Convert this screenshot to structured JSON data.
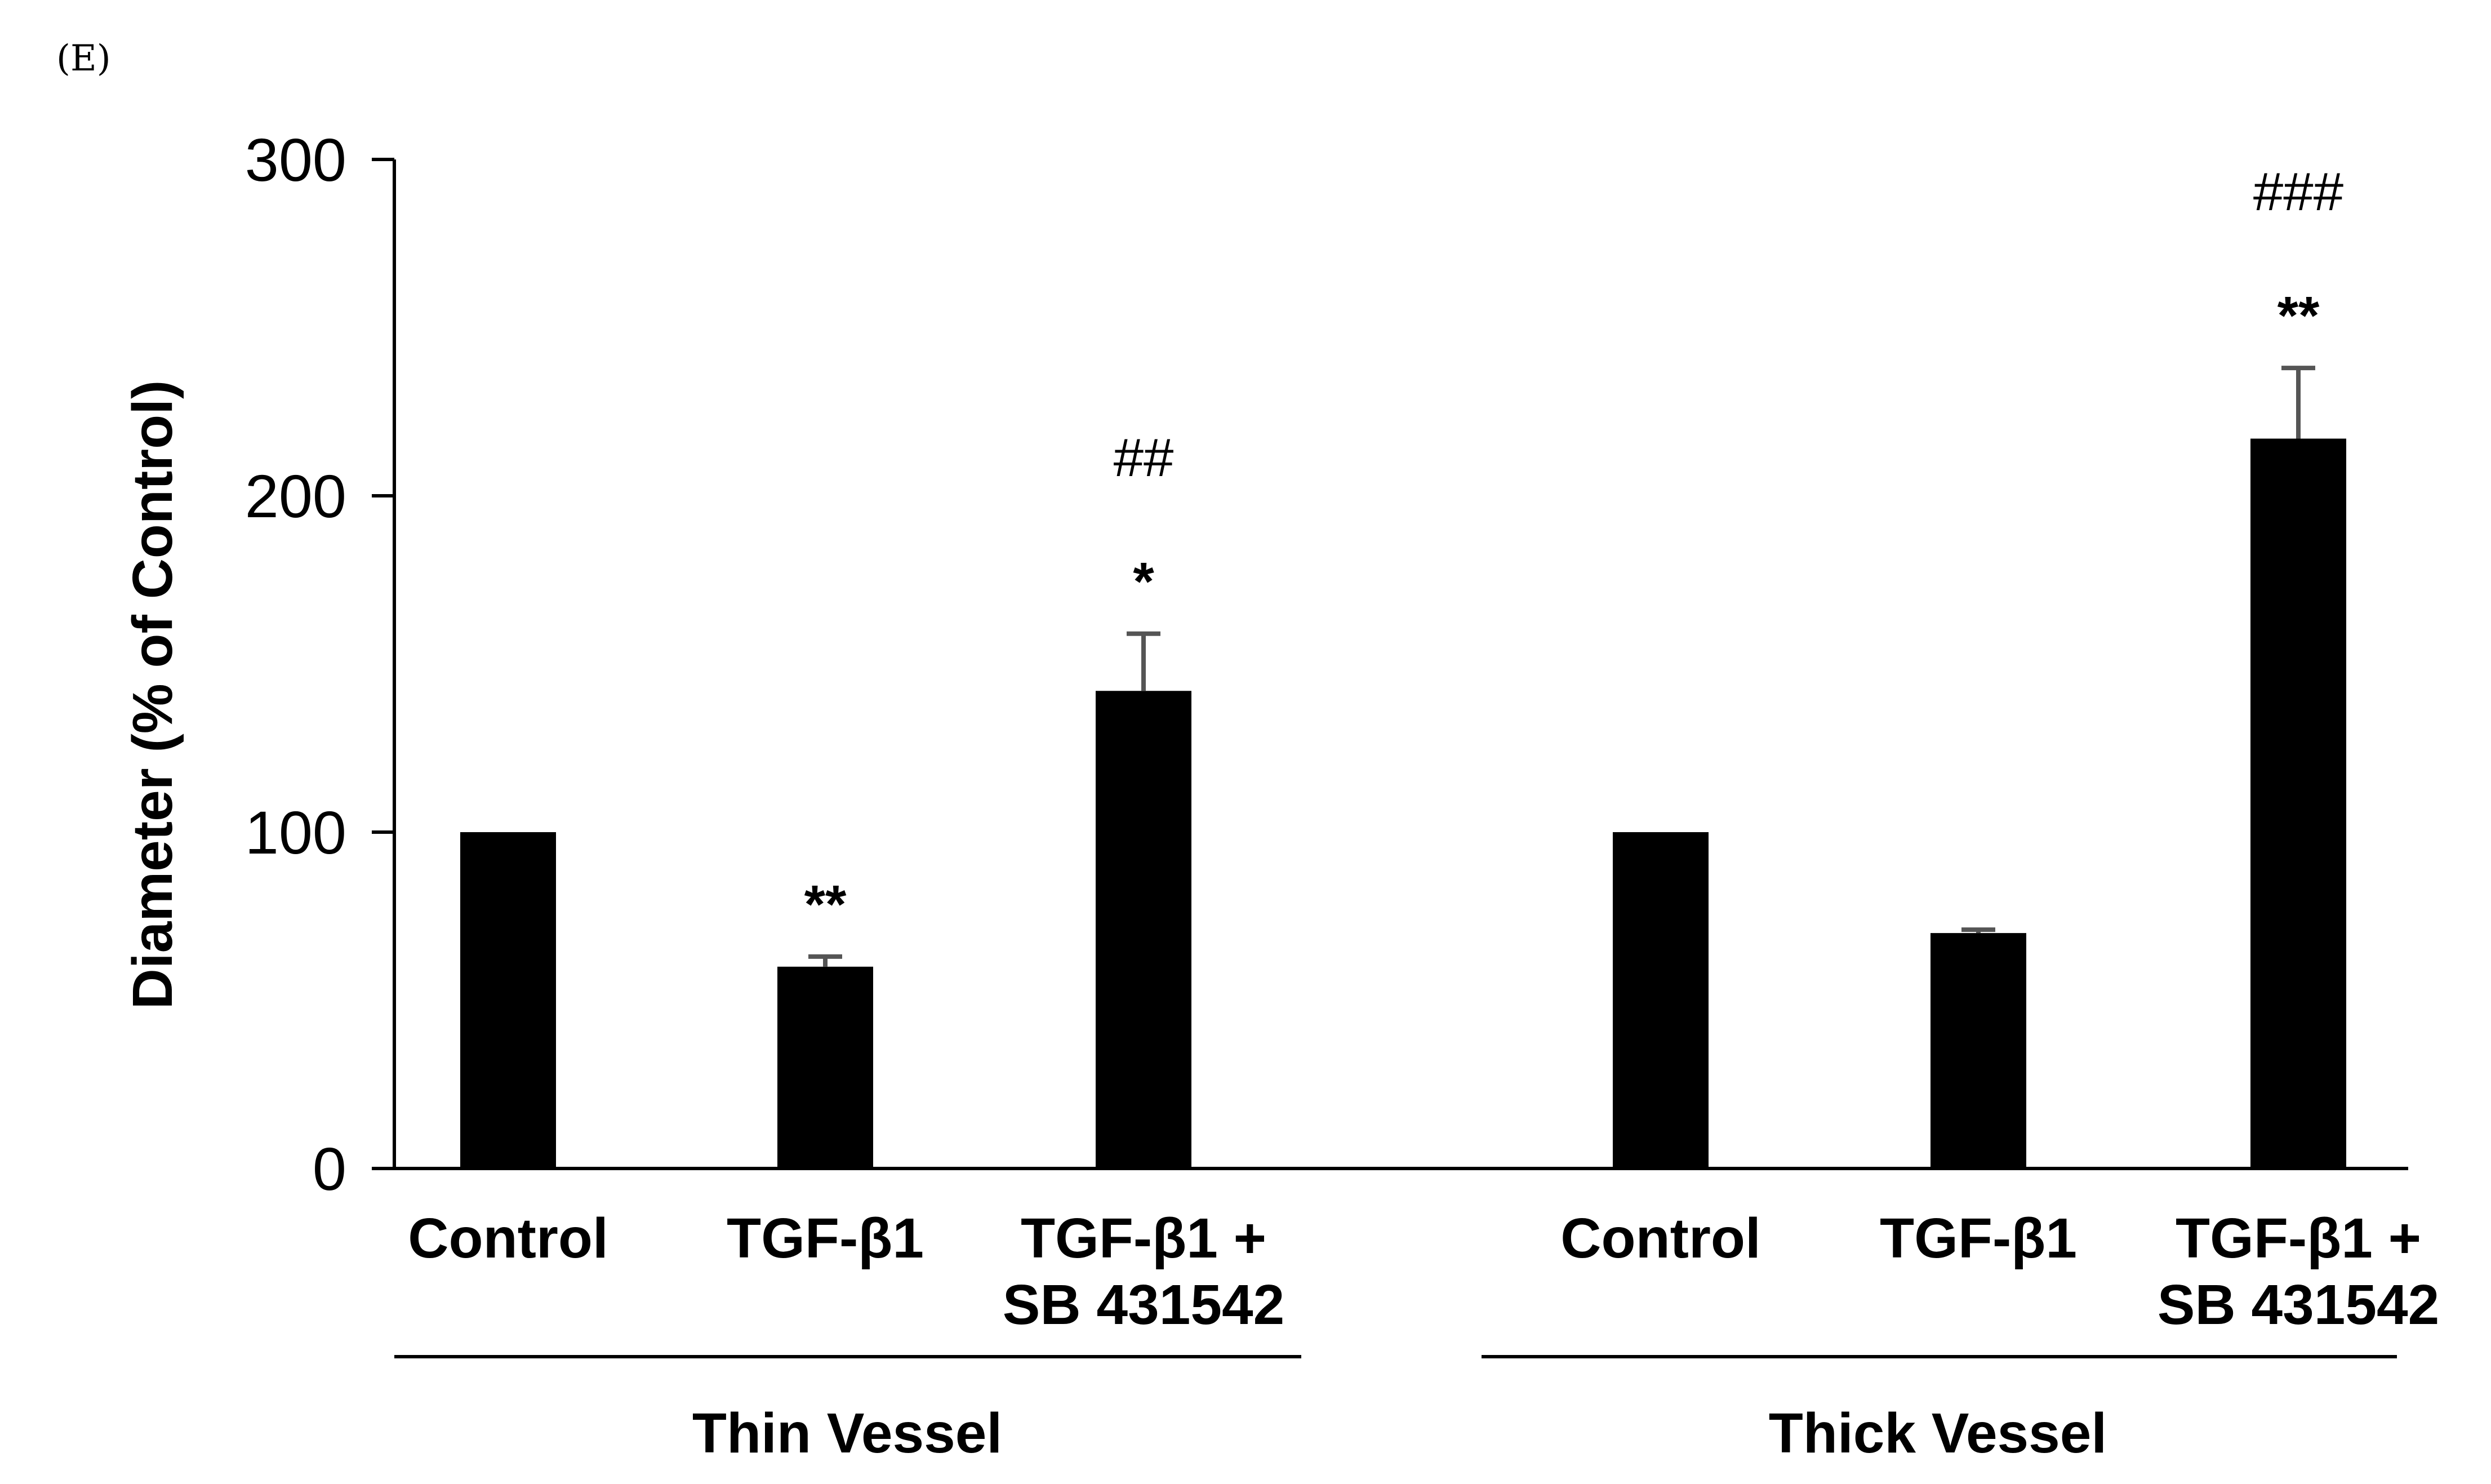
{
  "panel_label": "(E)",
  "chart_data": {
    "type": "bar",
    "title": "",
    "xlabel": "",
    "ylabel": "Diameter (% of Control)",
    "ylim": [
      0,
      300
    ],
    "yticks": [
      0,
      100,
      200,
      300
    ],
    "groups": [
      {
        "name": "Thin Vessel",
        "bars": [
          {
            "label_lines": [
              "Control"
            ],
            "value": 100,
            "error": 0,
            "sig": []
          },
          {
            "label_lines": [
              "TGF-β1"
            ],
            "value": 60,
            "error": 3,
            "sig": [
              "**"
            ]
          },
          {
            "label_lines": [
              "TGF-β1 +",
              "SB 431542"
            ],
            "value": 142,
            "error": 17,
            "sig": [
              "*",
              "##"
            ]
          }
        ]
      },
      {
        "name": "Thick Vessel",
        "bars": [
          {
            "label_lines": [
              "Control"
            ],
            "value": 100,
            "error": 0,
            "sig": []
          },
          {
            "label_lines": [
              "TGF-β1"
            ],
            "value": 70,
            "error": 1,
            "sig": []
          },
          {
            "label_lines": [
              "TGF-β1 +",
              "SB 431542"
            ],
            "value": 217,
            "error": 21,
            "sig": [
              "**",
              "###"
            ]
          }
        ]
      }
    ],
    "bar_color": "#000000"
  }
}
